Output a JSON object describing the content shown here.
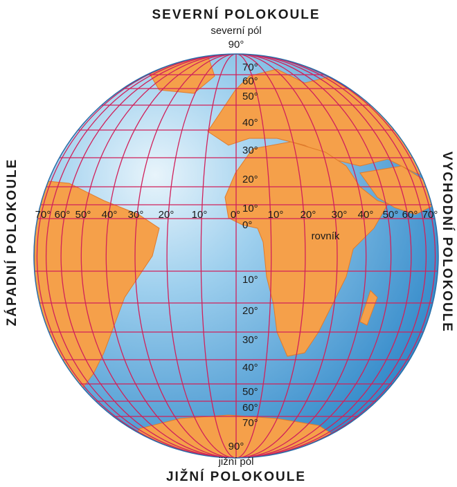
{
  "header": {
    "title": "SEVERNÍ POLOKOULE",
    "pole": "severní pól",
    "degree": "90°"
  },
  "footer": {
    "degree": "90°",
    "pole": "jižní pól",
    "title": "JIŽNÍ POLOKOULE"
  },
  "west_label": "ZÁPADNÍ POLOKOULE",
  "east_label": "VYCHODNÍ POLOKOULE",
  "latitudes_north": [
    "70°",
    "60°",
    "50°",
    "40°",
    "30°",
    "20°",
    "10°"
  ],
  "equator_latitude": "0°",
  "latitudes_south": [
    "10°",
    "20°",
    "30°",
    "40°",
    "50°",
    "60°",
    "70°"
  ],
  "longitudes_west": [
    "70°",
    "60°",
    "50°",
    "40°",
    "30°",
    "20°",
    "10°"
  ],
  "prime_meridian": "0°",
  "longitudes_east": [
    "10°",
    "20°",
    "30°",
    "40°",
    "50°",
    "60°",
    "70°"
  ],
  "equator_label": "rovník"
}
